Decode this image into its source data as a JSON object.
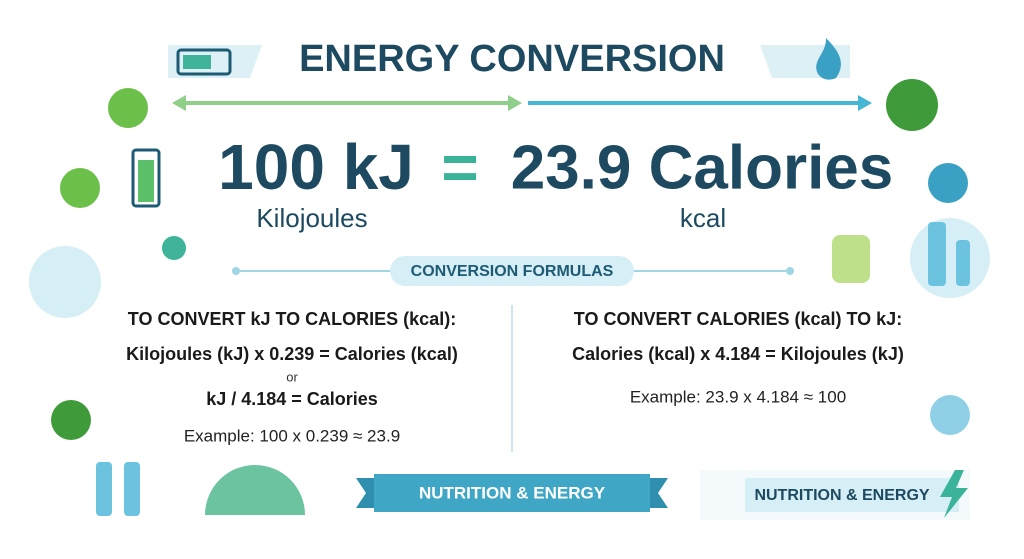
{
  "header": {
    "title": "ENERGY CONVERSION"
  },
  "equation": {
    "left_value": "100 kJ",
    "equals": "=",
    "right_value": "23.9 Calories",
    "left_unit": "Kilojoules",
    "right_unit": "kcal"
  },
  "formulas": {
    "heading": "CONVERSION FORMULAS",
    "kj_to_kcal": {
      "heading": "TO CONVERT kJ TO CALORIES (kcal):",
      "formula": "Kilojoules (kJ) x 0.239 = Calories (kcal)",
      "or": "or",
      "alternative": "kJ / 4.184 = Calories",
      "example": "Example: 100 x 0.239 ≈ 23.9"
    },
    "kcal_to_kj": {
      "heading": "TO CONVERT CALORIES (kcal) TO kJ:",
      "formula": "Calories (kcal) x 4.184 = Kilojoules (kJ)",
      "example": "Example: 23.9 x 4.184 ≈ 100"
    }
  },
  "banners": [
    "NUTRITION & ENERGY",
    "NUTRITION & ENERGY"
  ]
}
